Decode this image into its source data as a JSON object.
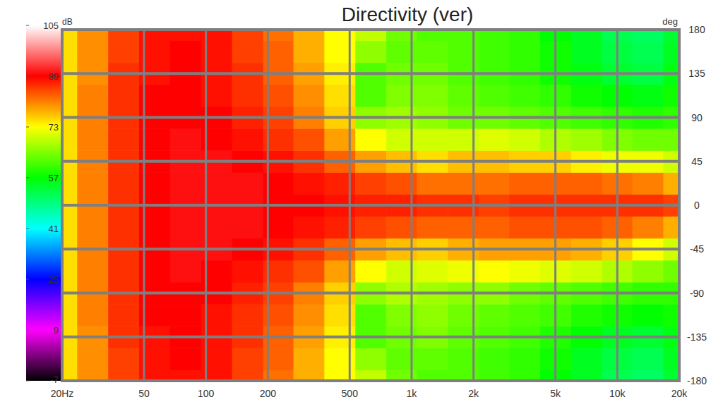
{
  "chart_data": {
    "type": "heatmap",
    "title": "Directivity (ver)",
    "ylabel": "deg",
    "log": "x",
    "grid": true,
    "xlim": [
      20,
      20000
    ],
    "ylim": [
      -180,
      180
    ],
    "xticks": [
      {
        "value": 20,
        "label": "20Hz"
      },
      50,
      100,
      200,
      500,
      {
        "value": 1000,
        "label": "1k"
      },
      {
        "value": 2000,
        "label": "2k"
      },
      {
        "value": 5000,
        "label": "5k"
      },
      {
        "value": 10000,
        "label": "10k"
      },
      {
        "value": 20000,
        "label": "20k"
      }
    ],
    "yticks": [
      -180,
      -135,
      -90,
      -45,
      0,
      45,
      90,
      135,
      180
    ],
    "colorbar": {
      "label": "dB",
      "range": [
        -7,
        105
      ],
      "ticks": [
        -7,
        9,
        25,
        41,
        57,
        73,
        89,
        105
      ]
    },
    "cells": {
      "x": [
        20,
        28,
        40,
        56,
        80,
        112,
        160,
        225,
        315,
        450,
        630,
        900,
        1250,
        1800,
        2500,
        3550,
        5000,
        7100,
        10000,
        14000,
        20000
      ],
      "y": [
        -180,
        -157.5,
        -135,
        -112.5,
        -90,
        -67.5,
        -45,
        -22.5,
        0,
        22.5,
        45,
        67.5,
        90,
        112.5,
        135,
        157.5,
        180
      ],
      "values": [
        [
          75,
          80,
          85,
          88,
          88,
          88,
          85,
          82,
          78,
          73,
          69,
          64,
          62,
          62,
          61,
          60,
          57,
          55,
          52,
          51,
          54
        ],
        [
          75,
          80,
          85,
          88,
          89,
          88,
          85,
          83,
          78,
          73,
          66,
          63,
          63,
          62,
          61,
          60,
          58,
          55,
          53,
          52,
          55
        ],
        [
          75,
          80,
          86,
          88,
          89,
          88,
          86,
          83,
          79,
          74,
          62,
          64,
          65,
          63,
          62,
          61,
          59,
          57,
          55,
          54,
          56
        ],
        [
          75,
          81,
          86,
          89,
          89,
          88,
          86,
          84,
          80,
          75,
          62,
          65,
          66,
          64,
          63,
          62,
          61,
          59,
          58,
          57,
          58
        ],
        [
          75,
          81,
          86,
          89,
          89,
          89,
          87,
          85,
          81,
          76,
          66,
          68,
          67,
          66,
          66,
          64,
          63,
          62,
          61,
          60,
          60
        ],
        [
          75,
          81,
          86,
          89,
          90,
          89,
          88,
          86,
          84,
          79,
          73,
          70,
          71,
          72,
          73,
          72,
          71,
          70,
          68,
          66,
          64
        ],
        [
          75,
          81,
          86,
          89,
          90,
          90,
          89,
          88,
          86,
          83,
          79,
          77,
          76,
          78,
          79,
          79,
          79,
          78,
          76,
          73,
          70
        ],
        [
          75,
          81,
          86,
          89,
          90,
          90,
          90,
          89,
          88,
          87,
          85,
          84,
          83,
          83,
          83,
          84,
          84,
          84,
          83,
          81,
          78
        ],
        [
          75,
          81,
          86,
          89,
          90,
          90,
          90,
          89,
          89,
          88,
          87,
          87,
          86,
          86,
          85,
          86,
          86,
          86,
          86,
          86,
          85
        ],
        [
          75,
          81,
          86,
          89,
          90,
          90,
          90,
          89,
          88,
          87,
          85,
          84,
          82,
          82,
          82,
          83,
          83,
          83,
          82,
          81,
          78
        ],
        [
          75,
          81,
          86,
          89,
          90,
          90,
          89,
          88,
          86,
          83,
          79,
          77,
          75,
          77,
          77,
          76,
          76,
          74,
          72,
          72,
          70
        ],
        [
          75,
          81,
          86,
          89,
          90,
          89,
          88,
          86,
          84,
          79,
          73,
          70,
          70,
          70,
          71,
          70,
          68,
          67,
          65,
          64,
          64
        ],
        [
          75,
          81,
          86,
          89,
          89,
          89,
          87,
          85,
          81,
          76,
          66,
          67,
          66,
          64,
          64,
          63,
          62,
          61,
          60,
          59,
          60
        ],
        [
          75,
          81,
          86,
          89,
          89,
          88,
          86,
          84,
          80,
          75,
          62,
          65,
          65,
          63,
          62,
          61,
          60,
          58,
          57,
          56,
          58
        ],
        [
          75,
          80,
          86,
          88,
          89,
          88,
          86,
          83,
          79,
          74,
          62,
          64,
          64,
          62,
          61,
          60,
          58,
          56,
          54,
          53,
          56
        ],
        [
          75,
          80,
          85,
          88,
          89,
          88,
          85,
          83,
          78,
          73,
          66,
          63,
          63,
          62,
          61,
          60,
          58,
          55,
          53,
          52,
          55
        ],
        [
          75,
          80,
          85,
          88,
          88,
          88,
          85,
          82,
          78,
          73,
          69,
          64,
          62,
          62,
          61,
          60,
          57,
          55,
          52,
          51,
          54
        ]
      ]
    }
  }
}
